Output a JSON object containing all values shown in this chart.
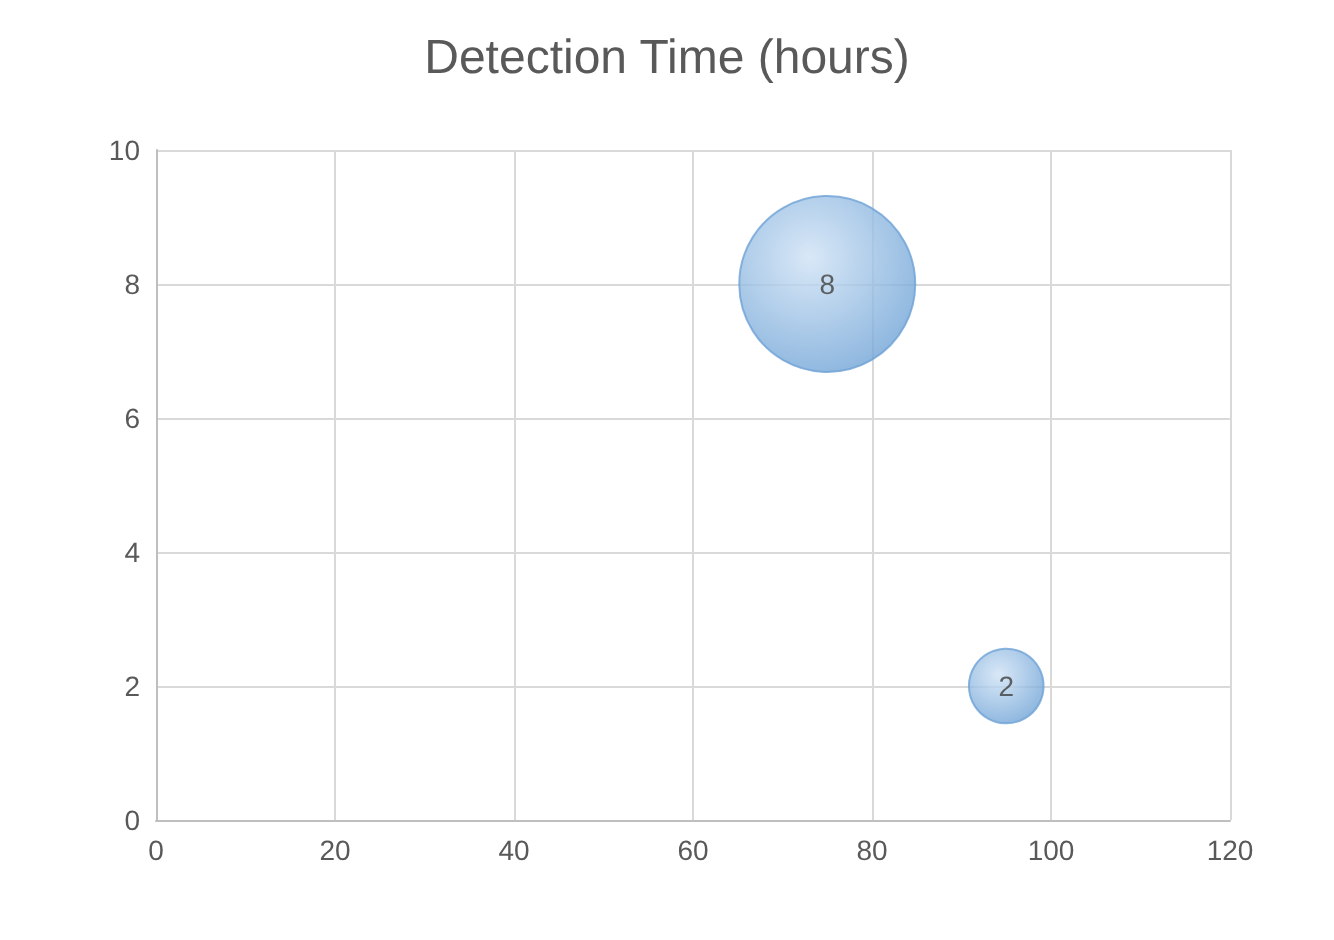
{
  "chart_data": {
    "type": "bubble",
    "title": "Detection Time (hours)",
    "x": [
      75,
      95
    ],
    "values": [
      8,
      2
    ],
    "sizes": [
      1,
      0.18
    ],
    "color": "#6fa3d6",
    "data_labels": true,
    "xlim": [
      0,
      120
    ],
    "xticks": [
      0,
      20,
      40,
      60,
      80,
      100,
      120
    ],
    "ylim": [
      0,
      10
    ],
    "yticks": [
      0,
      2,
      4,
      6,
      8,
      10
    ],
    "grid": true
  }
}
